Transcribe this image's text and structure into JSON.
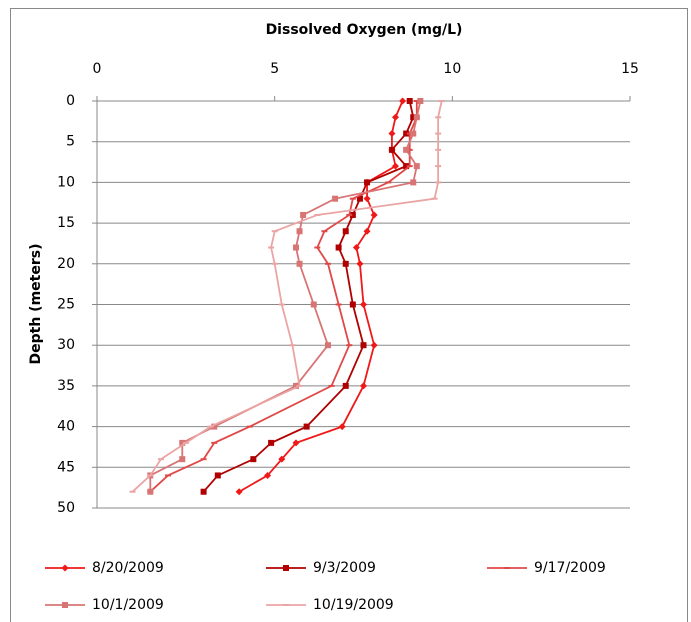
{
  "chart_data": {
    "type": "profile",
    "title": "Dissolved Oxygen (mg/L)",
    "y_label": "Depth (meters)",
    "xlim": [
      0,
      15
    ],
    "xticks": [
      0,
      5,
      10,
      15
    ],
    "ylim": [
      0,
      50
    ],
    "yticks": [
      0,
      5,
      10,
      15,
      20,
      25,
      30,
      35,
      40,
      45,
      50
    ],
    "y_inverted": true,
    "grid": true,
    "y": [
      0,
      2,
      4,
      6,
      8,
      10,
      12,
      14,
      16,
      18,
      20,
      25,
      30,
      35,
      40,
      42,
      44,
      46,
      48
    ],
    "series": [
      {
        "name": "8/20/2009",
        "color": "#f01818",
        "values": [
          8.6,
          8.4,
          8.3,
          8.3,
          8.4,
          7.6,
          7.6,
          7.8,
          7.6,
          7.3,
          7.4,
          7.5,
          7.8,
          7.5,
          6.9,
          5.6,
          5.2,
          4.8,
          4.0
        ]
      },
      {
        "name": "9/3/2009",
        "color": "#b00000",
        "values": [
          8.8,
          8.9,
          8.7,
          8.3,
          8.7,
          7.6,
          7.4,
          7.2,
          7.0,
          6.8,
          7.0,
          7.2,
          7.5,
          7.0,
          5.9,
          4.9,
          4.4,
          3.4,
          3.0
        ]
      },
      {
        "name": "9/17/2009",
        "color": "#e04848",
        "values": [
          9.0,
          9.0,
          8.8,
          8.8,
          8.8,
          8.2,
          7.2,
          7.1,
          6.4,
          6.2,
          6.5,
          6.8,
          7.1,
          6.6,
          4.3,
          3.3,
          3.0,
          2.0,
          1.5
        ]
      },
      {
        "name": "10/1/2009",
        "color": "#d87474",
        "values": [
          9.1,
          9.0,
          8.9,
          8.7,
          9.0,
          8.9,
          6.7,
          5.8,
          5.7,
          5.6,
          5.7,
          6.1,
          6.5,
          5.6,
          3.3,
          2.4,
          2.4,
          1.5,
          1.5
        ]
      },
      {
        "name": "10/19/2009",
        "color": "#eba4a4",
        "values": [
          9.7,
          9.6,
          9.6,
          9.6,
          9.6,
          9.6,
          9.5,
          6.2,
          5.0,
          4.9,
          5.0,
          5.2,
          5.5,
          5.7,
          3.2,
          2.5,
          1.8,
          1.5,
          1.0
        ]
      }
    ]
  }
}
